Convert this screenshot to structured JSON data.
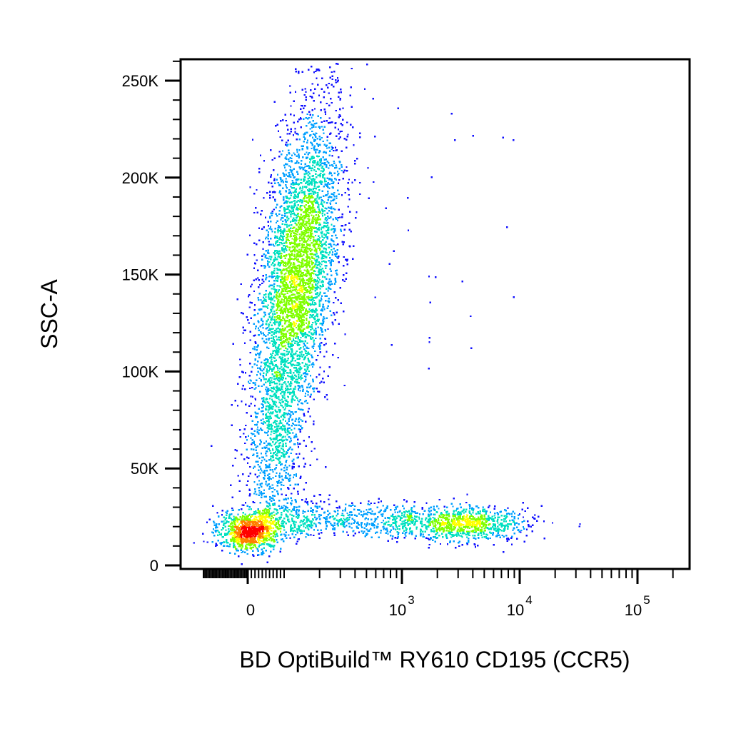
{
  "chart_data": {
    "type": "scatter",
    "style": "flow cytometry pseudocolor density dot plot",
    "xlabel": "BD OptiBuild™ RY610 CD195 (CCR5)",
    "ylabel": "SSC-A",
    "x_scale": "biexponential",
    "x_ticks": [
      {
        "value": 0,
        "base": "0",
        "exp": ""
      },
      {
        "value": 1000,
        "base": "10",
        "exp": "3"
      },
      {
        "value": 10000,
        "base": "10",
        "exp": "4"
      },
      {
        "value": 100000,
        "base": "10",
        "exp": "5"
      }
    ],
    "y_ticks": [
      {
        "value": 0,
        "label": "0"
      },
      {
        "value": 50000,
        "label": "50K"
      },
      {
        "value": 100000,
        "label": "100K"
      },
      {
        "value": 150000,
        "label": "150K"
      },
      {
        "value": 200000,
        "label": "200K"
      },
      {
        "value": 250000,
        "label": "250K"
      }
    ],
    "ylim": [
      0,
      262144
    ],
    "grid": false,
    "legend": "none",
    "density_colors": [
      "#1010ff",
      "#00a0ff",
      "#00e0c0",
      "#80ff00",
      "#ffff00",
      "#ff8000",
      "#ff0000"
    ],
    "populations": [
      {
        "name": "CCR5-negative low-SSC cluster",
        "x_center": 0,
        "y_center": 18000,
        "y_spread": 6000,
        "events": 900
      },
      {
        "name": "low-SSC tail",
        "x_center": 200,
        "y_center": 23000,
        "y_spread": 7000,
        "events": 650
      },
      {
        "name": "CCR5-positive low-SSC cluster",
        "x_center": 3000,
        "y_center": 22000,
        "y_spread": 6000,
        "events": 900
      },
      {
        "name": "high-SSC population",
        "x_center": 200,
        "y_center": 150000,
        "y_spread": 45000,
        "events": 4200
      },
      {
        "name": "intermediate SSC bridge",
        "x_center": 90,
        "y_center": 60000,
        "y_spread": 20000,
        "events": 550
      },
      {
        "name": "scattered events",
        "x_center": 2000,
        "y_center": 130000,
        "y_spread": 60000,
        "events": 25
      }
    ]
  }
}
